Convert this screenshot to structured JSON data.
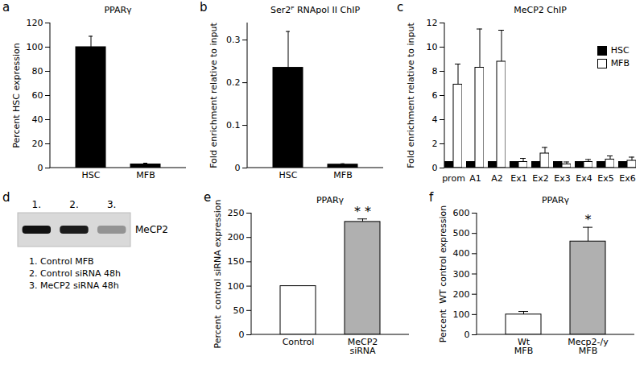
{
  "chart_data": [
    {
      "panel": "a",
      "type": "bar",
      "title": "PPARγ",
      "categories": [
        "HSC",
        "MFB"
      ],
      "values": [
        100,
        3
      ],
      "errors": [
        9,
        1
      ],
      "colors": [
        "#000000",
        "#000000"
      ],
      "ylabel": "Percent HSC expression",
      "ylim": [
        0,
        120
      ],
      "yticks": [
        0,
        20,
        40,
        60,
        80,
        100,
        120
      ]
    },
    {
      "panel": "b",
      "type": "bar",
      "title": "Ser2ᴾ RNApol II ChIP",
      "categories": [
        "HSC",
        "MFB"
      ],
      "values": [
        0.235,
        0.008
      ],
      "errors": [
        0.085,
        0.002
      ],
      "colors": [
        "#000000",
        "#000000"
      ],
      "ylabel": "Fold enrichment relative to input",
      "ylim": [
        0,
        0.34
      ],
      "yticks": [
        0,
        0.1,
        0.2,
        0.3
      ]
    },
    {
      "panel": "c",
      "type": "grouped_bar",
      "title": "MeCP2 ChIP",
      "categories": [
        "prom",
        "A1",
        "A2",
        "Ex1",
        "Ex2",
        "Ex3",
        "Ex4",
        "Ex5",
        "Ex6"
      ],
      "series": [
        {
          "name": "HSC",
          "color": "#000000",
          "values": [
            0.5,
            0.5,
            0.5,
            0.5,
            0.5,
            0.5,
            0.5,
            0.5,
            0.5
          ]
        },
        {
          "name": "MFB",
          "color": "#ffffff",
          "values": [
            6.9,
            8.3,
            8.8,
            0.5,
            1.2,
            0.3,
            0.5,
            0.7,
            0.6
          ],
          "errors": [
            1.7,
            3.2,
            2.6,
            0.3,
            0.5,
            0.2,
            0.2,
            0.3,
            0.3
          ]
        }
      ],
      "legend": "top-right",
      "ylabel": "Fold enrichment relative to input",
      "ylim": [
        0,
        12
      ],
      "yticks": [
        0,
        2,
        4,
        6,
        8,
        10,
        12
      ]
    },
    {
      "panel": "d",
      "type": "blot",
      "band_label": "MeCP2",
      "lanes": [
        "1.",
        "2.",
        "3."
      ],
      "intensity": [
        1,
        0.95,
        0.35
      ],
      "lane_names": [
        "1. Control MFB",
        "2. Control siRNA 48h",
        "3. MeCP2 siRNA 48h"
      ]
    },
    {
      "panel": "e",
      "type": "bar",
      "title": "PPARγ",
      "categories": [
        "Control",
        "MeCP2\nsiRNA"
      ],
      "values": [
        100,
        232
      ],
      "errors": [
        null,
        6
      ],
      "colors": [
        "#ffffff",
        "#b0b0b0"
      ],
      "ylabel": "Percent  control siRNA expression",
      "ylim": [
        0,
        250
      ],
      "yticks": [
        0,
        50,
        100,
        150,
        200,
        250
      ],
      "annotations": [
        {
          "category": "MeCP2\nsiRNA",
          "text": "* *"
        }
      ]
    },
    {
      "panel": "f",
      "type": "bar",
      "title": "PPARγ",
      "categories": [
        "Wt\nMFB",
        "Mecp2-/y\nMFB"
      ],
      "values": [
        100,
        460
      ],
      "errors": [
        15,
        70
      ],
      "colors": [
        "#ffffff",
        "#b0b0b0"
      ],
      "ylabel": "Percent  WT control expression",
      "ylim": [
        0,
        600
      ],
      "yticks": [
        0,
        100,
        200,
        300,
        400,
        500,
        600
      ],
      "annotations": [
        {
          "category": "Mecp2-/y\nMFB",
          "text": "*"
        }
      ]
    }
  ]
}
